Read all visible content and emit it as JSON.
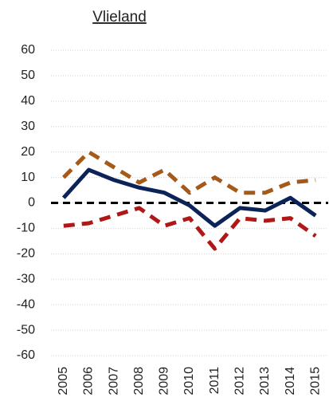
{
  "chart_data": {
    "type": "line",
    "title": "Vlieland",
    "categories": [
      "2005",
      "2006",
      "2007",
      "2008",
      "2009",
      "2010",
      "2011",
      "2012",
      "2013",
      "2014",
      "2015"
    ],
    "series": [
      {
        "color": "#a65a1a",
        "dashed": true,
        "values": [
          10,
          20,
          14,
          8,
          13,
          4,
          10,
          4,
          4,
          8,
          9
        ]
      },
      {
        "color": "#0b2359",
        "dashed": false,
        "values": [
          2,
          13,
          9,
          6,
          4,
          -1,
          -9,
          -2,
          -3,
          2,
          -5
        ]
      },
      {
        "color": "#b01818",
        "dashed": true,
        "values": [
          -9,
          -8,
          -5,
          -2,
          -9,
          -6,
          -18,
          -6,
          -7,
          -6,
          -13
        ]
      }
    ],
    "ylim": [
      -60,
      60
    ],
    "yticks": [
      60,
      50,
      40,
      30,
      20,
      10,
      0,
      -10,
      -20,
      -30,
      -40,
      -50,
      -60
    ],
    "grid": true,
    "zero_line": true
  }
}
